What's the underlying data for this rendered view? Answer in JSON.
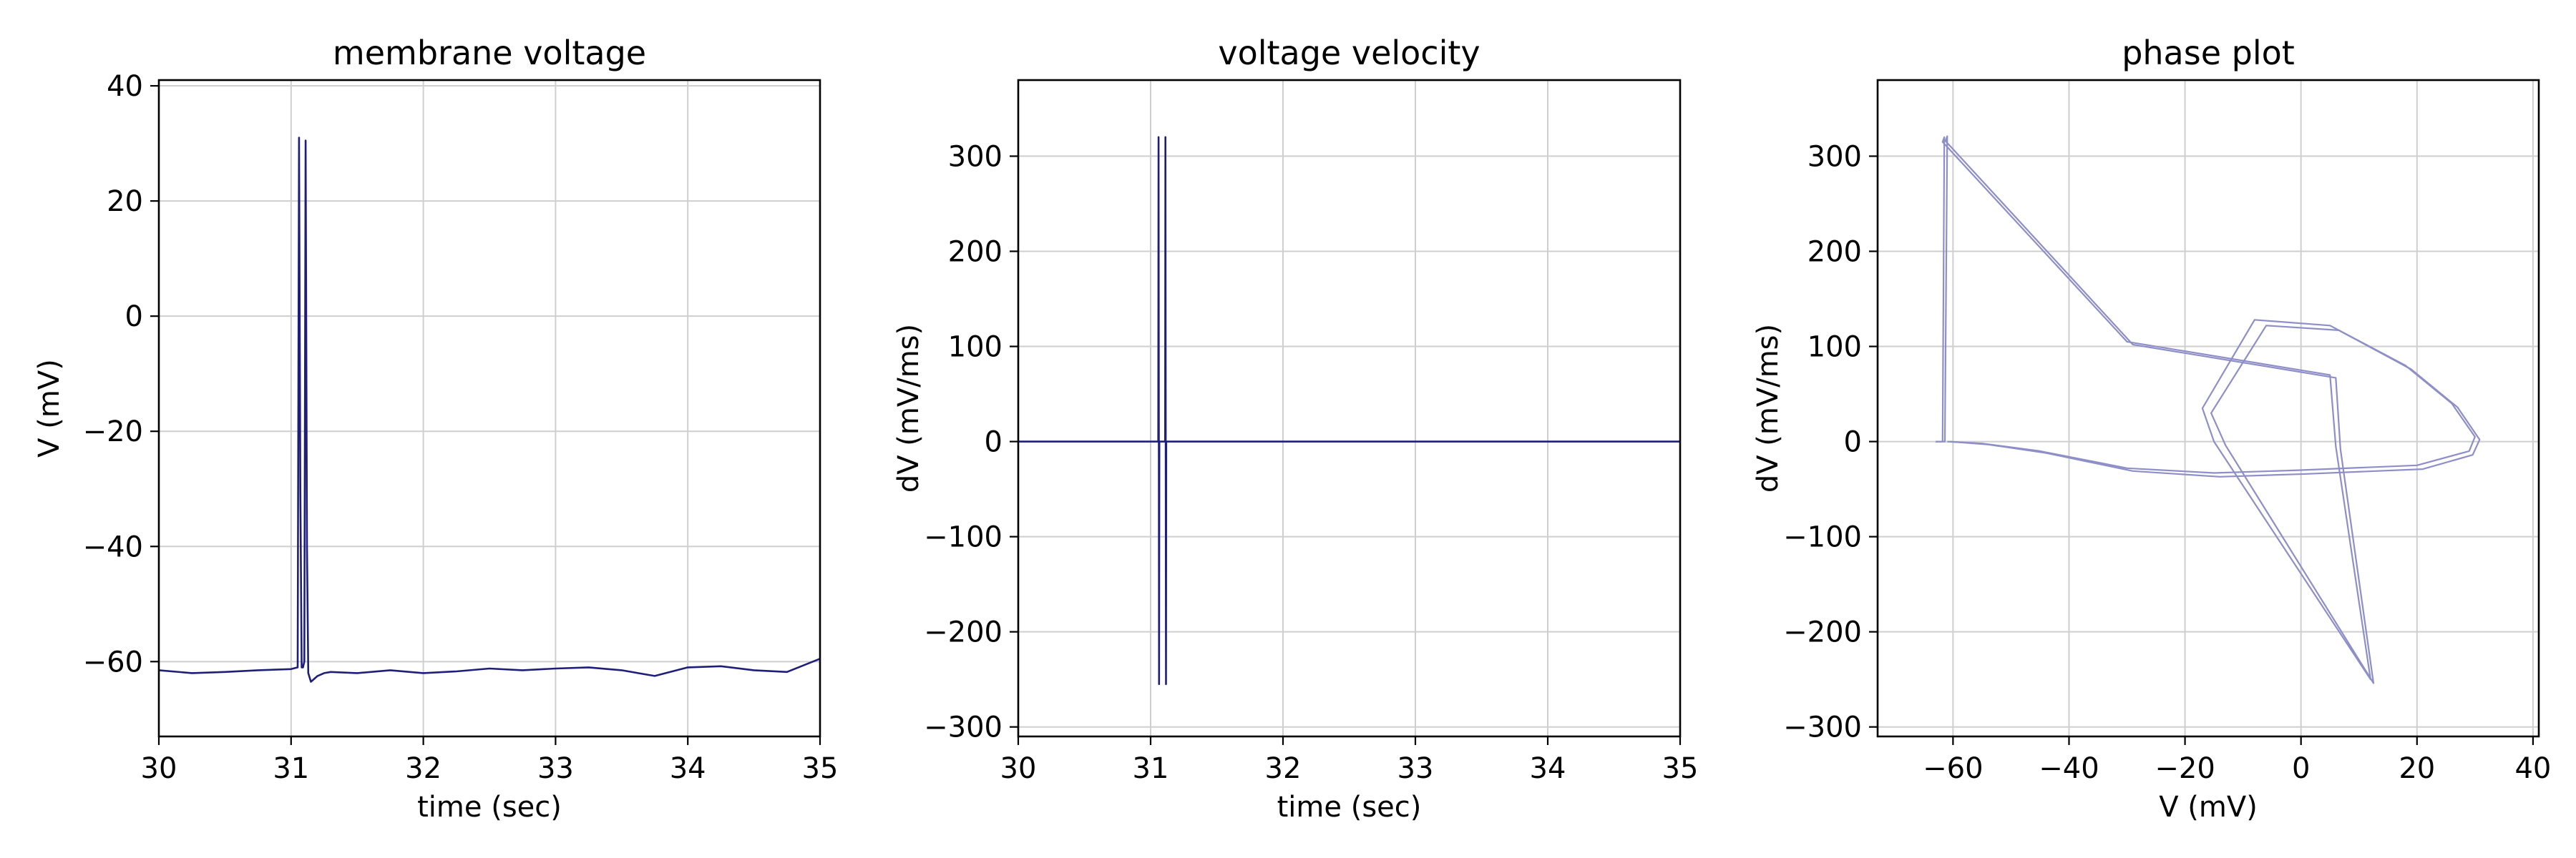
{
  "chart_data": [
    {
      "type": "line",
      "title": "membrane voltage",
      "xlabel": "time (sec)",
      "ylabel": "V (mV)",
      "xlim": [
        30,
        35
      ],
      "ylim": [
        -73,
        41
      ],
      "xticks": [
        30,
        31,
        32,
        33,
        34,
        35
      ],
      "yticks": [
        -60,
        -40,
        -20,
        0,
        20,
        40
      ],
      "grid": true,
      "series": [
        {
          "color": "#1f1f7a",
          "x": [
            30.0,
            30.25,
            30.5,
            30.75,
            31.0,
            31.05,
            31.06,
            31.07,
            31.08,
            31.09,
            31.1,
            31.11,
            31.12,
            31.13,
            31.15,
            31.2,
            31.25,
            31.3,
            31.5,
            31.75,
            32.0,
            32.25,
            32.5,
            32.75,
            33.0,
            33.25,
            33.5,
            33.75,
            34.0,
            34.25,
            34.5,
            34.75,
            35.0
          ],
          "y": [
            -61.5,
            -62,
            -61.8,
            -61.5,
            -61.3,
            -61,
            31,
            -30,
            -61,
            -61,
            -60,
            30.5,
            -40,
            -62,
            -63.5,
            -62.5,
            -62,
            -61.8,
            -62,
            -61.5,
            -62,
            -61.7,
            -61.2,
            -61.5,
            -61.2,
            -61,
            -61.5,
            -62.5,
            -61,
            -60.8,
            -61.5,
            -61.8,
            -59.5
          ]
        }
      ]
    },
    {
      "type": "line",
      "title": "voltage velocity",
      "xlabel": "time (sec)",
      "ylabel": "dV (mV/ms)",
      "xlim": [
        30,
        35
      ],
      "ylim": [
        -310,
        380
      ],
      "xticks": [
        30,
        31,
        32,
        33,
        34,
        35
      ],
      "yticks": [
        -300,
        -200,
        -100,
        0,
        100,
        200,
        300
      ],
      "grid": true,
      "series": [
        {
          "color": "#1f1f7a",
          "x": [
            30.0,
            31.058,
            31.06,
            31.062,
            31.064,
            31.066,
            31.068,
            31.11,
            31.112,
            31.114,
            31.116,
            31.118,
            31.12,
            32.0,
            33.0,
            34.0,
            35.0
          ],
          "y": [
            0,
            0,
            320,
            0,
            -255,
            0,
            0,
            0,
            320,
            0,
            -255,
            0,
            0,
            0,
            0,
            0,
            0
          ]
        }
      ]
    },
    {
      "type": "line",
      "title": "phase plot",
      "xlabel": "V (mV)",
      "ylabel": "dV (mV/ms)",
      "xlim": [
        -73,
        41
      ],
      "ylim": [
        -310,
        380
      ],
      "xticks": [
        -60,
        -40,
        -20,
        0,
        20,
        40
      ],
      "yticks": [
        -300,
        -200,
        -100,
        0,
        100,
        200,
        300
      ],
      "grid": true,
      "series": [
        {
          "color": "#8e8ec8",
          "x": [
            -63,
            -61.8,
            -61.5,
            -61.8,
            -30,
            5,
            6,
            12,
            -15,
            -17,
            -8,
            5,
            18,
            26,
            30,
            29,
            20,
            0,
            -15,
            -30,
            -45,
            -55,
            -61
          ],
          "y": [
            0,
            0,
            320,
            315,
            105,
            70,
            -5,
            -250,
            0,
            35,
            128,
            122,
            80,
            40,
            5,
            -10,
            -25,
            -30,
            -33,
            -28,
            -10,
            -2,
            0
          ]
        },
        {
          "color": "#8e8ec8",
          "x": [
            -63,
            -61.4,
            -61,
            -61.3,
            -29,
            6,
            6.8,
            12.5,
            -13,
            -15.5,
            -6,
            6.5,
            19,
            27,
            30.8,
            29.6,
            21,
            1,
            -14,
            -29,
            -44,
            -54,
            -60.5
          ],
          "y": [
            0,
            0,
            321,
            316,
            102,
            67,
            -8,
            -254,
            -4,
            30,
            122,
            117,
            76,
            36,
            2,
            -14,
            -29,
            -34,
            -37,
            -31,
            -12,
            -3,
            0
          ]
        }
      ]
    }
  ]
}
